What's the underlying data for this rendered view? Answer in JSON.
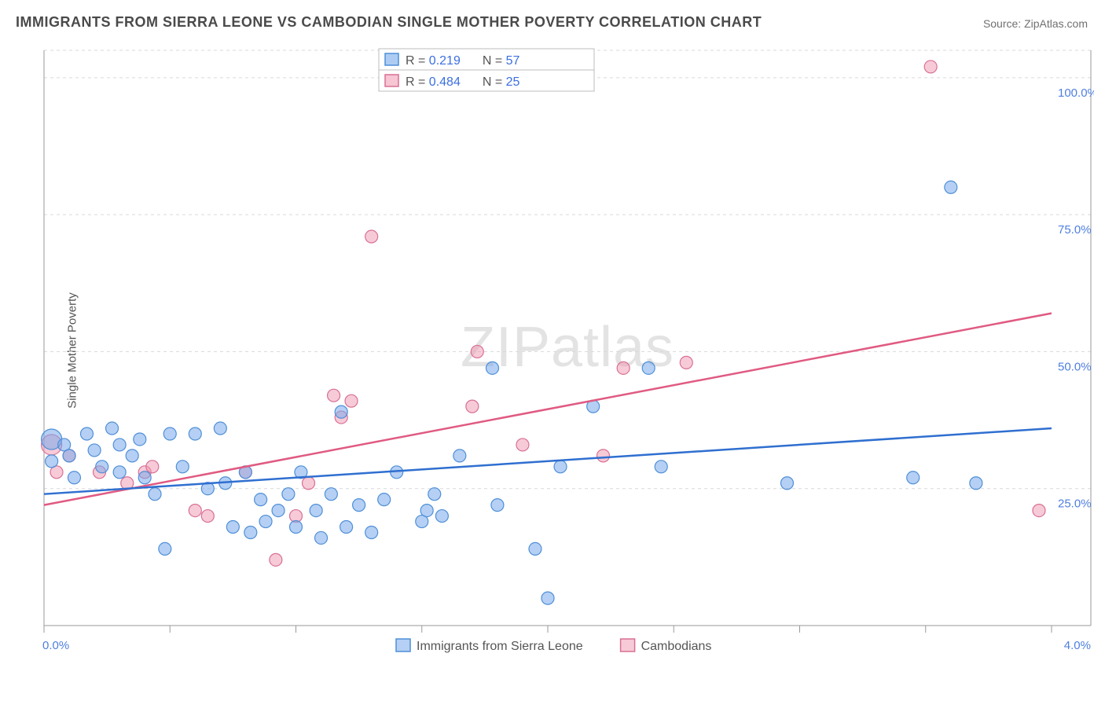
{
  "title": "IMMIGRANTS FROM SIERRA LEONE VS CAMBODIAN SINGLE MOTHER POVERTY CORRELATION CHART",
  "source_prefix": "Source: ",
  "source_link": "ZipAtlas.com",
  "watermark": "ZIPatlas",
  "ylabel": "Single Mother Poverty",
  "chart": {
    "type": "scatter",
    "background_color": "#ffffff",
    "grid_color": "#d9d9d9",
    "axis_color": "#9a9a9a",
    "label_color": "#4f7fe0",
    "label_fontsize": 15,
    "xlim": [
      0.0,
      4.0
    ],
    "ylim": [
      0.0,
      105.0
    ],
    "ytick_values": [
      25.0,
      50.0,
      75.0,
      100.0
    ],
    "ytick_labels": [
      "25.0%",
      "50.0%",
      "75.0%",
      "100.0%"
    ],
    "xtick_values": [
      0.0,
      0.5,
      1.0,
      1.5,
      2.0,
      2.5,
      3.0,
      3.5,
      4.0
    ],
    "xtick_labels_left": "0.0%",
    "xtick_labels_right": "4.0%",
    "point_radius": 8,
    "point_radius_large": 13,
    "trend_line_width": 2.5,
    "series": {
      "blue": {
        "name": "Immigrants from Sierra Leone",
        "fill": "rgba(120,170,235,0.55)",
        "stroke": "#4f8fd8",
        "trend_color": "#2f6fd0",
        "R": "0.219",
        "N": "57",
        "trend": {
          "x1": 0.0,
          "y1": 24.0,
          "x2": 4.0,
          "y2": 36.0
        },
        "points": [
          {
            "x": 0.03,
            "y": 34,
            "r": 13
          },
          {
            "x": 0.03,
            "y": 30
          },
          {
            "x": 0.08,
            "y": 33
          },
          {
            "x": 0.1,
            "y": 31
          },
          {
            "x": 0.12,
            "y": 27
          },
          {
            "x": 0.17,
            "y": 35
          },
          {
            "x": 0.2,
            "y": 32
          },
          {
            "x": 0.23,
            "y": 29
          },
          {
            "x": 0.27,
            "y": 36
          },
          {
            "x": 0.3,
            "y": 33
          },
          {
            "x": 0.3,
            "y": 28
          },
          {
            "x": 0.35,
            "y": 31
          },
          {
            "x": 0.38,
            "y": 34
          },
          {
            "x": 0.4,
            "y": 27
          },
          {
            "x": 0.44,
            "y": 24
          },
          {
            "x": 0.48,
            "y": 14
          },
          {
            "x": 0.5,
            "y": 35
          },
          {
            "x": 0.55,
            "y": 29
          },
          {
            "x": 0.6,
            "y": 35
          },
          {
            "x": 0.65,
            "y": 25
          },
          {
            "x": 0.7,
            "y": 36
          },
          {
            "x": 0.72,
            "y": 26
          },
          {
            "x": 0.75,
            "y": 18
          },
          {
            "x": 0.8,
            "y": 28
          },
          {
            "x": 0.82,
            "y": 17
          },
          {
            "x": 0.86,
            "y": 23
          },
          {
            "x": 0.88,
            "y": 19
          },
          {
            "x": 0.93,
            "y": 21
          },
          {
            "x": 0.97,
            "y": 24
          },
          {
            "x": 1.0,
            "y": 18
          },
          {
            "x": 1.02,
            "y": 28
          },
          {
            "x": 1.08,
            "y": 21
          },
          {
            "x": 1.1,
            "y": 16
          },
          {
            "x": 1.14,
            "y": 24
          },
          {
            "x": 1.18,
            "y": 39
          },
          {
            "x": 1.2,
            "y": 18
          },
          {
            "x": 1.25,
            "y": 22
          },
          {
            "x": 1.3,
            "y": 17
          },
          {
            "x": 1.35,
            "y": 23
          },
          {
            "x": 1.4,
            "y": 28
          },
          {
            "x": 1.5,
            "y": 19
          },
          {
            "x": 1.52,
            "y": 21
          },
          {
            "x": 1.55,
            "y": 24
          },
          {
            "x": 1.58,
            "y": 20
          },
          {
            "x": 1.65,
            "y": 31
          },
          {
            "x": 1.78,
            "y": 47
          },
          {
            "x": 1.8,
            "y": 22
          },
          {
            "x": 1.95,
            "y": 14
          },
          {
            "x": 2.0,
            "y": 5
          },
          {
            "x": 2.05,
            "y": 29
          },
          {
            "x": 2.18,
            "y": 40
          },
          {
            "x": 2.4,
            "y": 47
          },
          {
            "x": 2.45,
            "y": 29
          },
          {
            "x": 2.95,
            "y": 26
          },
          {
            "x": 3.45,
            "y": 27
          },
          {
            "x": 3.6,
            "y": 80
          },
          {
            "x": 3.7,
            "y": 26
          }
        ]
      },
      "pink": {
        "name": "Cambodians",
        "fill": "rgba(240,150,175,0.5)",
        "stroke": "#d87094",
        "trend_color": "#e05a82",
        "R": "0.484",
        "N": "25",
        "trend": {
          "x1": 0.0,
          "y1": 22.0,
          "x2": 4.0,
          "y2": 57.0
        },
        "points": [
          {
            "x": 0.03,
            "y": 33,
            "r": 13
          },
          {
            "x": 0.05,
            "y": 28
          },
          {
            "x": 0.1,
            "y": 31
          },
          {
            "x": 0.22,
            "y": 28
          },
          {
            "x": 0.33,
            "y": 26
          },
          {
            "x": 0.4,
            "y": 28
          },
          {
            "x": 0.43,
            "y": 29
          },
          {
            "x": 0.6,
            "y": 21
          },
          {
            "x": 0.65,
            "y": 20
          },
          {
            "x": 0.8,
            "y": 28
          },
          {
            "x": 0.92,
            "y": 12
          },
          {
            "x": 1.0,
            "y": 20
          },
          {
            "x": 1.05,
            "y": 26
          },
          {
            "x": 1.15,
            "y": 42
          },
          {
            "x": 1.18,
            "y": 38
          },
          {
            "x": 1.22,
            "y": 41
          },
          {
            "x": 1.3,
            "y": 71
          },
          {
            "x": 1.7,
            "y": 40
          },
          {
            "x": 1.72,
            "y": 50
          },
          {
            "x": 1.9,
            "y": 33
          },
          {
            "x": 2.22,
            "y": 31
          },
          {
            "x": 2.3,
            "y": 47
          },
          {
            "x": 2.55,
            "y": 48
          },
          {
            "x": 3.52,
            "y": 102
          },
          {
            "x": 3.95,
            "y": 21
          }
        ]
      }
    },
    "stat_box": {
      "border_color": "#bcbcbc",
      "text_color_label": "#555555",
      "text_color_value": "#3b6fe0",
      "fontsize": 16,
      "labels": {
        "R": "R  =",
        "N": "N  ="
      }
    },
    "legend": {
      "fontsize": 16,
      "text_color": "#555555"
    }
  }
}
